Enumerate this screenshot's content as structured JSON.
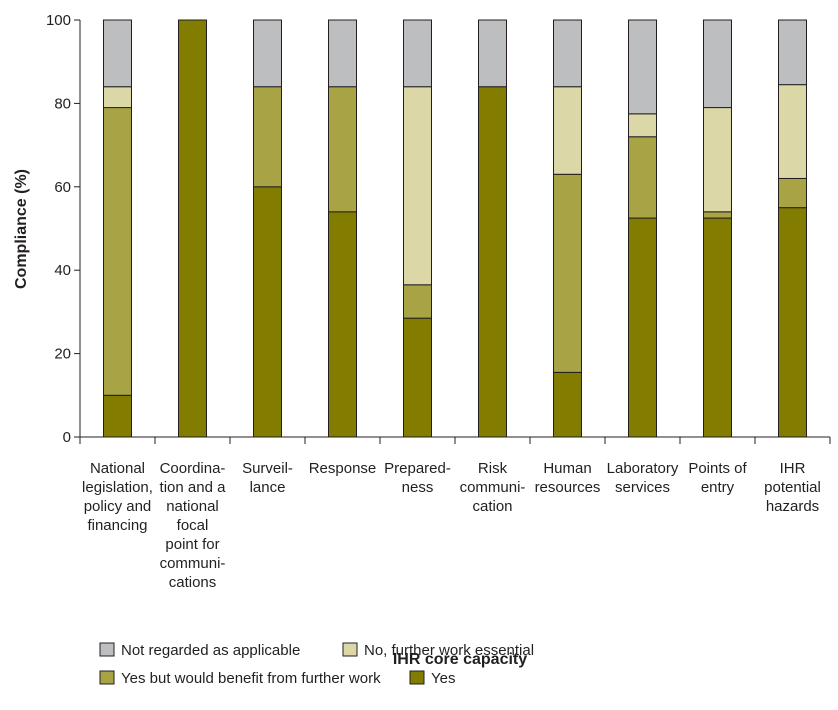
{
  "chart_data": {
    "type": "bar",
    "stacked": true,
    "xlabel": "IHR core capacity",
    "ylabel": "Compliance (%)",
    "ylim": [
      0,
      100
    ],
    "yticks": [
      "0",
      "20",
      "40",
      "60",
      "80",
      "100"
    ],
    "grid": false,
    "legend_position": "bottom",
    "categories": [
      [
        "National",
        "legislation,",
        "policy and",
        "financing"
      ],
      [
        "Coordina-",
        "tion and a",
        "national",
        "focal",
        "point for",
        "communi-",
        "cations"
      ],
      [
        "Surveil-",
        "lance"
      ],
      [
        "Response"
      ],
      [
        "Prepared-",
        "ness"
      ],
      [
        "Risk",
        "communi-",
        "cation"
      ],
      [
        "Human",
        "resources"
      ],
      [
        "Laboratory",
        "services"
      ],
      [
        "Points of",
        "entry"
      ],
      [
        "IHR",
        "potential",
        "hazards"
      ]
    ],
    "series": [
      {
        "name": "Yes",
        "color": "#827d00",
        "values": [
          10,
          100,
          60,
          54,
          28.5,
          84,
          15.5,
          52.5,
          52.5,
          55
        ]
      },
      {
        "name": "Yes but would benefit from further work",
        "color": "#a8a345",
        "values": [
          69,
          0,
          24,
          30,
          8,
          0,
          47.5,
          19.5,
          1.5,
          7
        ]
      },
      {
        "name": "No, further work essential",
        "color": "#dbd7a7",
        "values": [
          5,
          0,
          0,
          0,
          47.5,
          0,
          21,
          5.5,
          25,
          22.5
        ]
      },
      {
        "name": "Not regarded as applicable",
        "color": "#bcbec0",
        "values": [
          16,
          0,
          16,
          16,
          16,
          16,
          16,
          22.5,
          21,
          15.5
        ]
      }
    ],
    "legend_order": [
      3,
      2,
      1,
      0
    ]
  }
}
